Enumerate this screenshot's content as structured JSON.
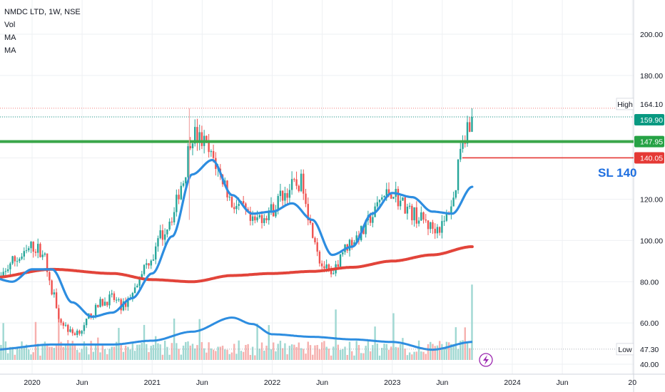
{
  "legend": {
    "symbol_line": "NMDC LTD, 1W, NSE",
    "vol_label": "Vol",
    "ma1_label": "MA",
    "ma2_label": "MA"
  },
  "annotation": {
    "sl_text": "SL 140"
  },
  "price_tags": [
    {
      "key": "high",
      "label": "High",
      "value": "164.10",
      "price": 164.1,
      "bg": "#ffffff",
      "fg": "#131722"
    },
    {
      "key": "last",
      "label": "",
      "value": "159.90",
      "price": 159.9,
      "bg": "#089981",
      "fg": "#ffffff"
    },
    {
      "key": "resistance",
      "label": "",
      "value": "147.95",
      "price": 147.95,
      "bg": "#26a245",
      "fg": "#ffffff"
    },
    {
      "key": "stoploss",
      "label": "",
      "value": "140.05",
      "price": 140.05,
      "bg": "#e53935",
      "fg": "#ffffff"
    },
    {
      "key": "low",
      "label": "Low",
      "value": "47.30",
      "price": 47.3,
      "bg": "#ffffff",
      "fg": "#131722"
    }
  ],
  "colors": {
    "up": "#26a69a",
    "down": "#ef5350",
    "vol_up": "#9fd8d2",
    "vol_down": "#f6b0ae",
    "ma_blue": "#2d8de0",
    "ma_red": "#e2443a",
    "resistance": "#3aa64a",
    "stoploss": "#e53935",
    "grid": "#eef0f3"
  },
  "chart_data": {
    "type": "candlestick",
    "symbol": "NMDC LTD",
    "interval": "1W",
    "exchange": "NSE",
    "y_ticks": [
      40,
      60,
      80,
      100,
      120,
      140,
      160,
      180,
      200
    ],
    "y_tick_labels": [
      "40.00",
      "60.00",
      "80.00",
      "100.00",
      "120.00",
      "",
      "",
      "180.00",
      "200.00"
    ],
    "ylim": [
      37,
      215
    ],
    "x_ticks": [
      {
        "label": "2020",
        "date": "2020-01"
      },
      {
        "label": "Jun",
        "date": "2020-06"
      },
      {
        "label": "2021",
        "date": "2021-01"
      },
      {
        "label": "Jun",
        "date": "2021-06"
      },
      {
        "label": "2022",
        "date": "2022-01"
      },
      {
        "label": "Jun",
        "date": "2022-06"
      },
      {
        "label": "2023",
        "date": "2023-01"
      },
      {
        "label": "Jun",
        "date": "2023-06"
      },
      {
        "label": "2024",
        "date": "2024-01"
      },
      {
        "label": "Jun",
        "date": "2024-06"
      },
      {
        "label": "20",
        "date": "2025-01"
      }
    ],
    "x_range": [
      "2019-09",
      "2025-01"
    ],
    "last_bar_date": "2023-09",
    "price_close_path": [
      [
        "2019-09",
        75
      ],
      [
        "2019-10",
        82
      ],
      [
        "2019-11",
        90
      ],
      [
        "2019-12",
        92
      ],
      [
        "2020-01",
        97
      ],
      [
        "2020-02",
        95
      ],
      [
        "2020-03",
        75
      ],
      [
        "2020-04",
        60
      ],
      [
        "2020-05",
        55
      ],
      [
        "2020-06",
        57
      ],
      [
        "2020-07",
        65
      ],
      [
        "2020-08",
        70
      ],
      [
        "2020-09",
        72
      ],
      [
        "2020-10",
        68
      ],
      [
        "2020-11",
        74
      ],
      [
        "2020-12",
        86
      ],
      [
        "2021-01",
        92
      ],
      [
        "2021-02",
        103
      ],
      [
        "2021-03",
        112
      ],
      [
        "2021-04",
        128
      ],
      [
        "2021-05",
        152
      ],
      [
        "2021-06",
        148
      ],
      [
        "2021-07",
        140
      ],
      [
        "2021-08",
        130
      ],
      [
        "2021-09",
        118
      ],
      [
        "2021-10",
        115
      ],
      [
        "2021-11",
        108
      ],
      [
        "2021-12",
        112
      ],
      [
        "2022-01",
        115
      ],
      [
        "2022-02",
        122
      ],
      [
        "2022-03",
        126
      ],
      [
        "2022-04",
        128
      ],
      [
        "2022-05",
        105
      ],
      [
        "2022-06",
        88
      ],
      [
        "2022-07",
        82
      ],
      [
        "2022-08",
        95
      ],
      [
        "2022-09",
        100
      ],
      [
        "2022-10",
        104
      ],
      [
        "2022-11",
        112
      ],
      [
        "2022-12",
        121
      ],
      [
        "2023-01",
        124
      ],
      [
        "2023-02",
        118
      ],
      [
        "2023-03",
        113
      ],
      [
        "2023-04",
        110
      ],
      [
        "2023-05",
        106
      ],
      [
        "2023-06",
        107
      ],
      [
        "2023-07",
        118
      ],
      [
        "2023-08",
        150
      ],
      [
        "2023-09",
        159.9
      ]
    ],
    "high_price": 164.1,
    "low_price": 47.3,
    "resistance_level": 147.95,
    "stop_loss_level": 140.05,
    "ma_fast": [
      [
        "2019-09",
        82
      ],
      [
        "2019-11",
        80
      ],
      [
        "2020-01",
        86
      ],
      [
        "2020-03",
        86
      ],
      [
        "2020-05",
        70
      ],
      [
        "2020-07",
        63
      ],
      [
        "2020-09",
        65
      ],
      [
        "2020-11",
        72
      ],
      [
        "2021-01",
        84
      ],
      [
        "2021-03",
        102
      ],
      [
        "2021-05",
        132
      ],
      [
        "2021-07",
        139
      ],
      [
        "2021-09",
        122
      ],
      [
        "2021-11",
        113
      ],
      [
        "2022-01",
        114
      ],
      [
        "2022-03",
        118
      ],
      [
        "2022-05",
        110
      ],
      [
        "2022-07",
        93
      ],
      [
        "2022-09",
        97
      ],
      [
        "2022-11",
        113
      ],
      [
        "2023-01",
        123
      ],
      [
        "2023-03",
        121
      ],
      [
        "2023-05",
        114
      ],
      [
        "2023-07",
        113
      ],
      [
        "2023-09",
        126
      ]
    ],
    "ma_slow": [
      [
        "2019-09",
        82
      ],
      [
        "2020-03",
        86
      ],
      [
        "2020-09",
        84
      ],
      [
        "2021-01",
        81
      ],
      [
        "2021-05",
        80
      ],
      [
        "2021-09",
        83
      ],
      [
        "2022-01",
        84
      ],
      [
        "2022-05",
        85
      ],
      [
        "2022-09",
        87
      ],
      [
        "2023-01",
        90
      ],
      [
        "2023-05",
        93
      ],
      [
        "2023-09",
        97
      ]
    ],
    "volume": {
      "scale": "relative 0-1",
      "ma_path": [
        [
          "2019-09",
          0.08
        ],
        [
          "2020-03",
          0.12
        ],
        [
          "2020-09",
          0.12
        ],
        [
          "2021-01",
          0.15
        ],
        [
          "2021-05",
          0.22
        ],
        [
          "2021-09",
          0.33
        ],
        [
          "2021-11",
          0.28
        ],
        [
          "2022-01",
          0.2
        ],
        [
          "2022-05",
          0.18
        ],
        [
          "2022-09",
          0.16
        ],
        [
          "2023-01",
          0.14
        ],
        [
          "2023-05",
          0.08
        ],
        [
          "2023-09",
          0.14
        ]
      ]
    }
  }
}
